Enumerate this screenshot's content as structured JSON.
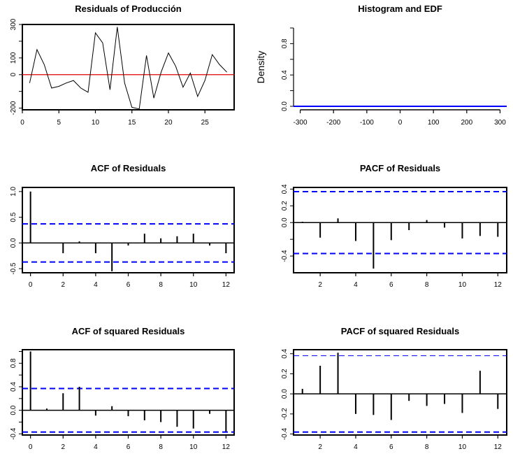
{
  "chart_data": [
    {
      "id": "residuals",
      "type": "line",
      "title": "Residuals of Producción",
      "xlabel": "",
      "ylabel": "",
      "xlim": [
        0,
        29
      ],
      "ylim": [
        -210,
        300
      ],
      "xticks": [
        0,
        5,
        10,
        15,
        20,
        25
      ],
      "yticks": [
        -200,
        0,
        100,
        300
      ],
      "x": [
        1,
        2,
        3,
        4,
        5,
        6,
        7,
        8,
        9,
        10,
        11,
        12,
        13,
        14,
        15,
        16,
        17,
        18,
        19,
        20,
        21,
        22,
        23,
        24,
        25,
        26,
        27,
        28
      ],
      "values": [
        -50,
        150,
        60,
        -80,
        -70,
        -50,
        -35,
        -80,
        -105,
        250,
        190,
        -90,
        285,
        -50,
        -195,
        -205,
        115,
        -140,
        15,
        130,
        50,
        -75,
        10,
        -130,
        -35,
        120,
        60,
        15
      ],
      "reference_line": 0,
      "colors": {
        "line": "#000000",
        "reference": "#e00000"
      }
    },
    {
      "id": "histogram",
      "type": "area",
      "title": "Histogram and EDF",
      "xlabel": "",
      "ylabel": "Density",
      "xlim": [
        -320,
        320
      ],
      "ylim": [
        0,
        1
      ],
      "xticks": [
        -300,
        -200,
        -100,
        0,
        100,
        200,
        300
      ],
      "yticks": [
        "0.0",
        "0.4",
        "0.8"
      ],
      "ytick_values": [
        0,
        0.4,
        0.8
      ],
      "series": [
        {
          "name": "density",
          "x": [
            -320,
            320
          ],
          "values": [
            0,
            0
          ]
        }
      ],
      "colors": {
        "line": "#0000ff"
      }
    },
    {
      "id": "acf",
      "type": "bar",
      "title": "ACF of Residuals",
      "xlim": [
        -0.5,
        12.5
      ],
      "ylim": [
        -0.58,
        1.08
      ],
      "xticks": [
        0,
        2,
        4,
        6,
        8,
        10,
        12
      ],
      "yticks": [
        "-0.5",
        "0.0",
        "0.5",
        "1.0"
      ],
      "ytick_values": [
        -0.5,
        0,
        0.5,
        1.0
      ],
      "categories": [
        0,
        1,
        2,
        3,
        4,
        5,
        6,
        7,
        8,
        9,
        10,
        11,
        12
      ],
      "values": [
        1.0,
        0.0,
        -0.2,
        0.03,
        -0.2,
        -0.55,
        -0.05,
        0.18,
        0.09,
        0.13,
        0.18,
        -0.05,
        -0.2
      ],
      "confidence_bound": 0.37,
      "colors": {
        "bar": "#000000",
        "bound": "#0000ff"
      }
    },
    {
      "id": "pacf",
      "type": "bar",
      "title": "PACF of Residuals",
      "xlim": [
        0.5,
        12.5
      ],
      "ylim": [
        -0.6,
        0.42
      ],
      "xticks": [
        2,
        4,
        6,
        8,
        10,
        12
      ],
      "yticks": [
        "-0.4",
        "0.0",
        "0.2",
        "0.4"
      ],
      "ytick_values": [
        -0.4,
        0,
        0.2,
        0.4
      ],
      "minor_yticks": [
        -0.2
      ],
      "categories": [
        1,
        2,
        3,
        4,
        5,
        6,
        7,
        8,
        9,
        10,
        11,
        12
      ],
      "values": [
        0.01,
        -0.18,
        0.05,
        -0.22,
        -0.55,
        -0.21,
        -0.09,
        0.03,
        -0.06,
        -0.19,
        -0.16,
        -0.17
      ],
      "confidence_bound": 0.37,
      "colors": {
        "bar": "#000000",
        "bound": "#0000ff"
      }
    },
    {
      "id": "acf-squared",
      "type": "bar",
      "title": "ACF of squared Residuals",
      "xlim": [
        -0.5,
        12.5
      ],
      "ylim": [
        -0.42,
        1.03
      ],
      "xticks": [
        0,
        2,
        4,
        6,
        8,
        10,
        12
      ],
      "yticks": [
        "-0.4",
        "0.0",
        "0.4",
        "0.8"
      ],
      "ytick_values": [
        -0.4,
        0,
        0.4,
        0.8
      ],
      "minor_yticks": [
        -0.2,
        0.2,
        0.6,
        1.0
      ],
      "categories": [
        0,
        1,
        2,
        3,
        4,
        5,
        6,
        7,
        8,
        9,
        10,
        11,
        12
      ],
      "values": [
        1.0,
        0.03,
        0.29,
        0.4,
        -0.09,
        0.07,
        -0.1,
        -0.17,
        -0.2,
        -0.28,
        -0.31,
        -0.06,
        -0.36
      ],
      "confidence_bound": 0.37,
      "colors": {
        "bar": "#000000",
        "bound": "#0000ff"
      }
    },
    {
      "id": "pacf-squared",
      "type": "bar",
      "title": "PACF of squared Residuals",
      "xlim": [
        0.5,
        12.5
      ],
      "ylim": [
        -0.41,
        0.44
      ],
      "xticks": [
        2,
        4,
        6,
        8,
        10,
        12
      ],
      "yticks": [
        "-0.4",
        "-0.2",
        "0.0",
        "0.2",
        "0.4"
      ],
      "ytick_values": [
        -0.4,
        -0.2,
        0,
        0.2,
        0.4
      ],
      "categories": [
        1,
        2,
        3,
        4,
        5,
        6,
        7,
        8,
        9,
        10,
        11,
        12
      ],
      "values": [
        0.05,
        0.28,
        0.41,
        -0.2,
        -0.21,
        -0.26,
        -0.07,
        -0.12,
        -0.1,
        -0.19,
        0.23,
        -0.15
      ],
      "confidence_bound": 0.38,
      "colors": {
        "bar": "#000000",
        "bound": "#0000ff"
      }
    }
  ]
}
